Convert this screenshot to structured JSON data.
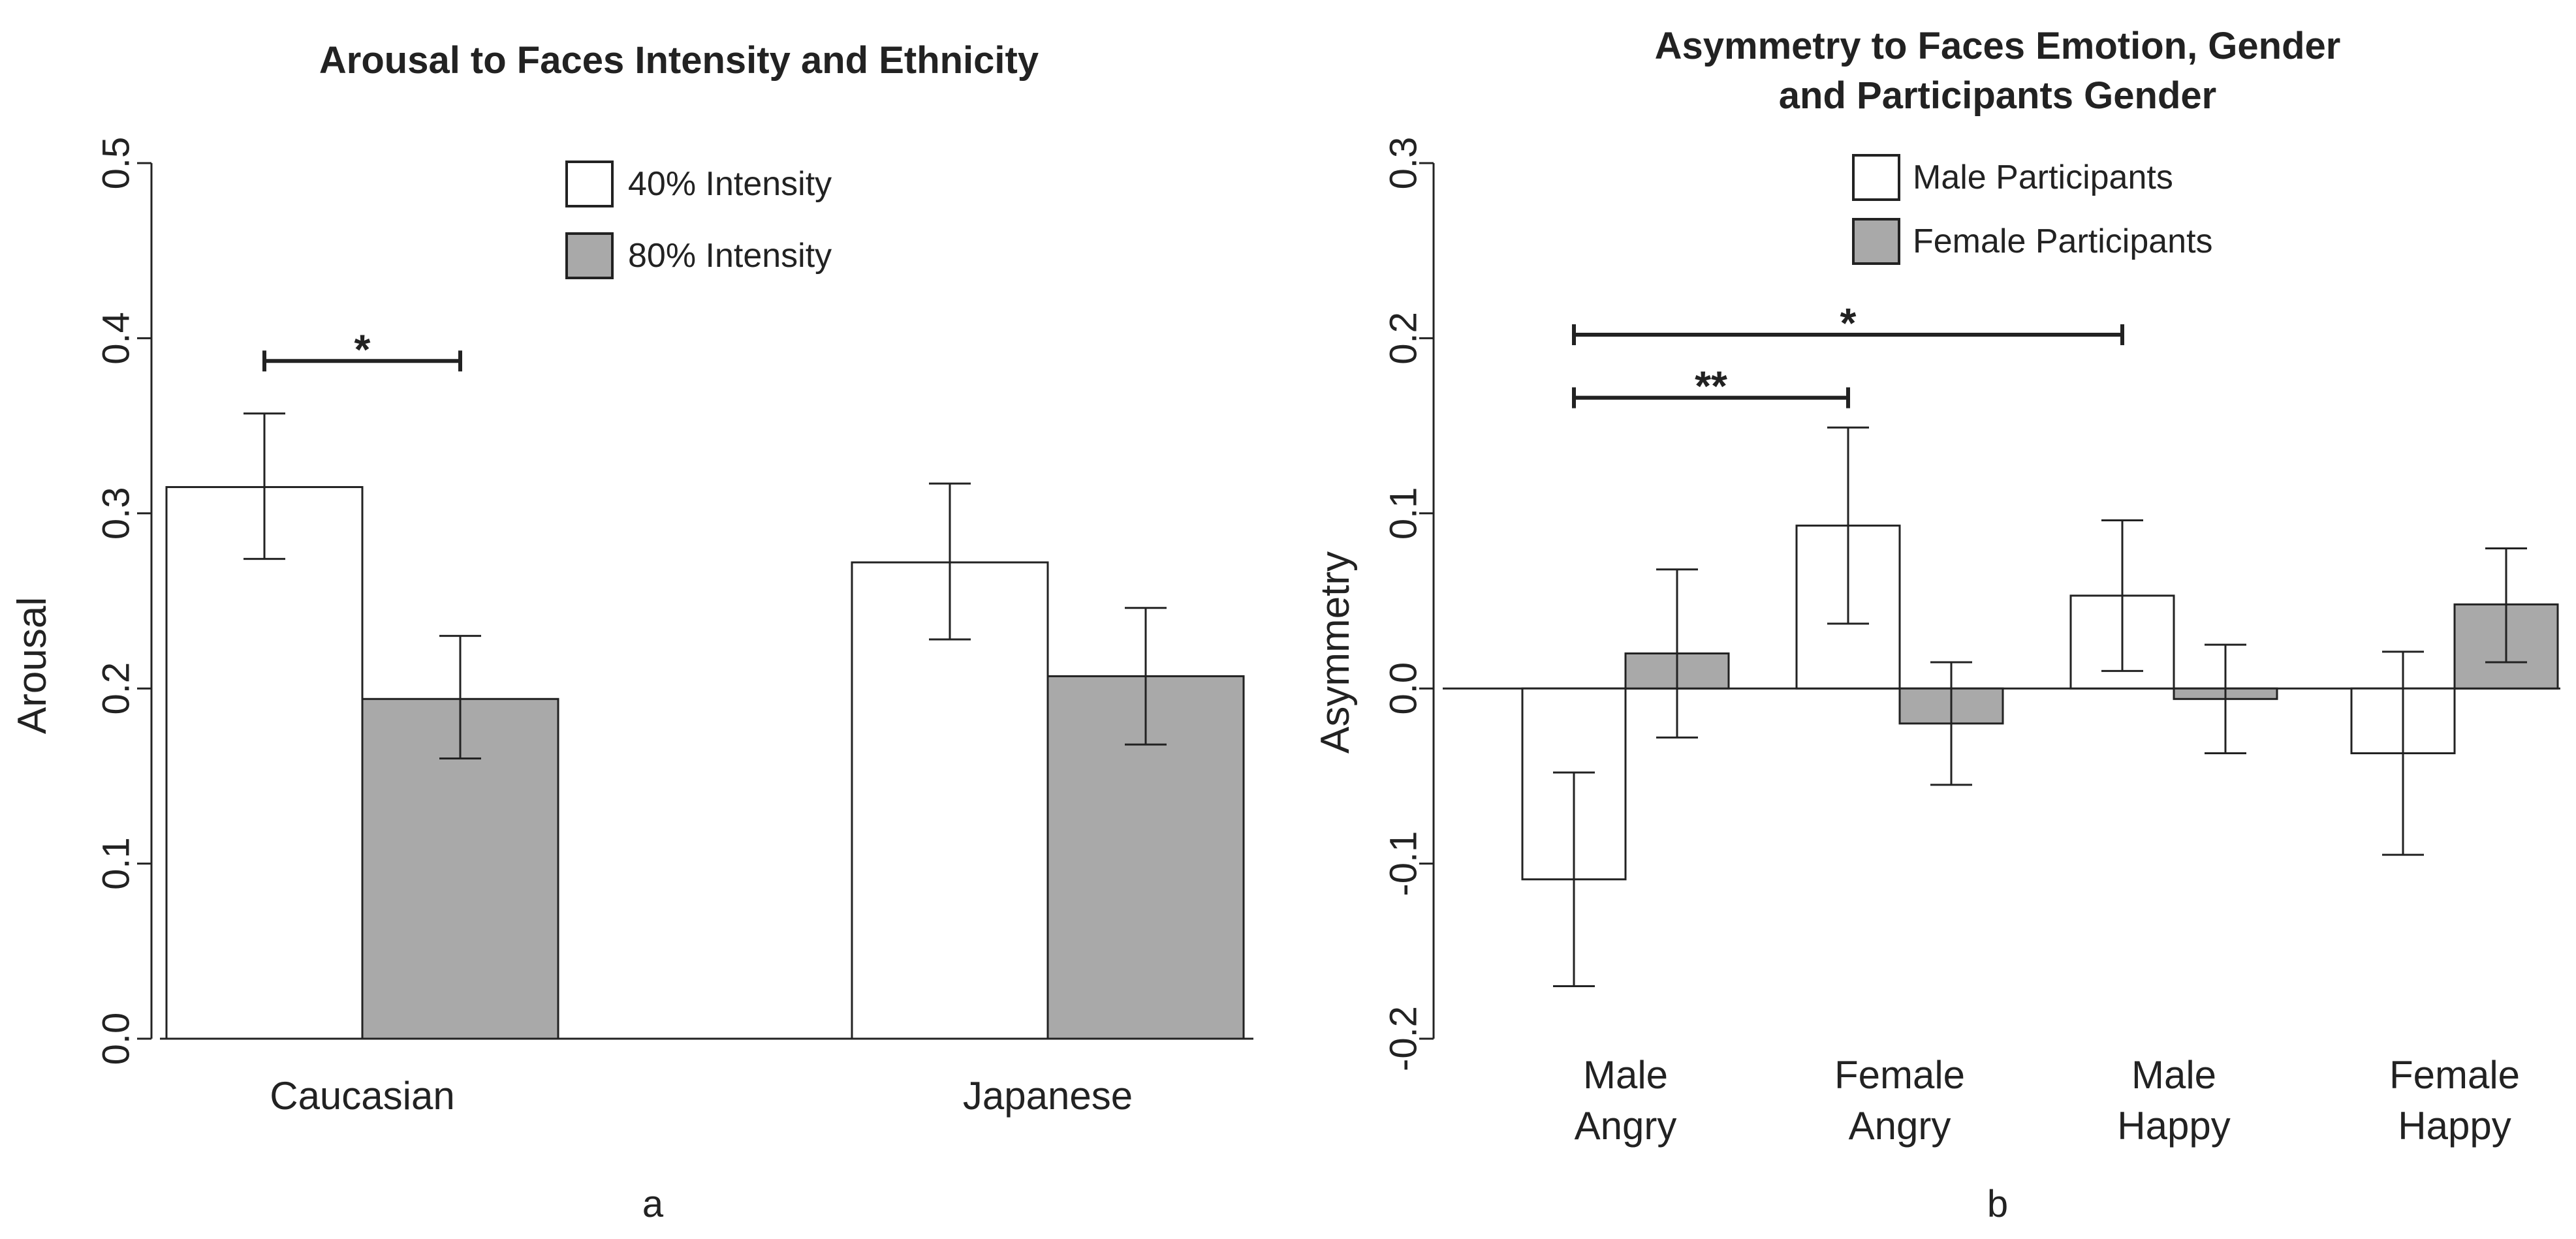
{
  "colors": {
    "series_white": "#ffffff",
    "series_grey": "#a9a9a9",
    "stroke": "#222222"
  },
  "chart_data": [
    {
      "type": "bar",
      "panel_label": "a",
      "title_lines": [
        "Arousal to Faces Intensity and Ethnicity"
      ],
      "xlabel": "",
      "ylabel": "Arousal",
      "ylim": [
        0.0,
        0.5
      ],
      "yticks": [
        0.0,
        0.1,
        0.2,
        0.3,
        0.4,
        0.5
      ],
      "ytick_labels": [
        "0.0",
        "0.1",
        "0.2",
        "0.3",
        "0.4",
        "0.5"
      ],
      "zero_line": false,
      "legend_position": "top-right",
      "categories": [
        [
          "Caucasian"
        ],
        [
          "Japanese"
        ]
      ],
      "series": [
        {
          "name": "40% Intensity",
          "color": "#ffffff",
          "values": [
            0.315,
            0.272
          ],
          "err_low": [
            0.274,
            0.228
          ],
          "err_high": [
            0.357,
            0.317
          ]
        },
        {
          "name": "80% Intensity",
          "color": "#a9a9a9",
          "values": [
            0.194,
            0.207
          ],
          "err_low": [
            0.16,
            0.168
          ],
          "err_high": [
            0.23,
            0.246
          ]
        }
      ],
      "annotations": [
        {
          "text": "*",
          "from": [
            0,
            0
          ],
          "to": [
            0,
            1
          ],
          "y": 0.387
        }
      ]
    },
    {
      "type": "bar",
      "panel_label": "b",
      "title_lines": [
        "Asymmetry to Faces Emotion, Gender",
        "and Participants Gender"
      ],
      "xlabel": "",
      "ylabel": "Asymmetry",
      "ylim": [
        -0.2,
        0.3
      ],
      "yticks": [
        -0.2,
        -0.1,
        0.0,
        0.1,
        0.2,
        0.3
      ],
      "ytick_labels": [
        "-0.2",
        "-0.1",
        "0.0",
        "0.1",
        "0.2",
        "0.3"
      ],
      "zero_line": true,
      "legend_position": "top-center",
      "categories": [
        [
          "Male",
          "Angry"
        ],
        [
          "Female",
          "Angry"
        ],
        [
          "Male",
          "Happy"
        ],
        [
          "Female",
          "Happy"
        ]
      ],
      "series": [
        {
          "name": "Male Participants",
          "color": "#ffffff",
          "values": [
            -0.109,
            0.093,
            0.053,
            -0.037
          ],
          "err_low": [
            -0.17,
            0.037,
            0.01,
            -0.095
          ],
          "err_high": [
            -0.048,
            0.149,
            0.096,
            0.021
          ]
        },
        {
          "name": "Female Participants",
          "color": "#a9a9a9",
          "values": [
            0.02,
            -0.02,
            -0.006,
            0.048
          ],
          "err_low": [
            -0.028,
            -0.055,
            -0.037,
            0.015
          ],
          "err_high": [
            0.068,
            0.015,
            0.025,
            0.08
          ]
        }
      ],
      "annotations": [
        {
          "text": "*",
          "from": [
            0,
            0
          ],
          "to": [
            2,
            0
          ],
          "y": 0.202
        },
        {
          "text": "**",
          "from": [
            0,
            0
          ],
          "to": [
            1,
            0
          ],
          "y": 0.166
        }
      ]
    }
  ]
}
